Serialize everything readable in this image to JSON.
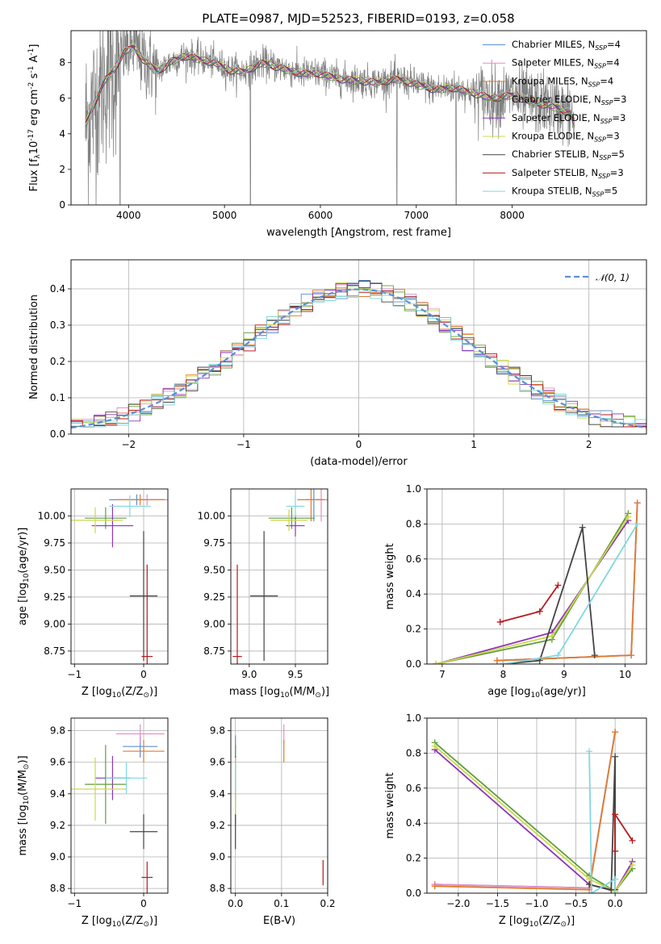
{
  "figure_title": "PLATE=0987, MJD=52523, FIBERID=0193, z=0.058",
  "chart_data": [
    {
      "id": "spectrum",
      "type": "line",
      "xlabel": "wavelength [Angstrom, rest frame]",
      "ylabel": "Flux [f$_\\lambda$10$^{-17}$ erg cm$^{-2}$ s$^{-1}$ A$^{-1}$]",
      "xlim": [
        3400,
        9400
      ],
      "ylim": [
        0,
        9.8
      ],
      "xticks": [
        4000,
        5000,
        6000,
        7000,
        8000
      ],
      "yticks": [
        0,
        2,
        4,
        6,
        8
      ],
      "grid": false,
      "legend_position": "top-right",
      "legend": [
        {
          "label": "Chabrier MILES, N",
          "sub": "SSP",
          "suffix": "=4",
          "color": "#5b8fd6"
        },
        {
          "label": "Salpeter MILES, N",
          "sub": "SSP",
          "suffix": "=4",
          "color": "#e58cc8"
        },
        {
          "label": "Kroupa MILES, N",
          "sub": "SSP",
          "suffix": "=4",
          "color": "#e07b2b"
        },
        {
          "label": "Chabrier ELODIE, N",
          "sub": "SSP",
          "suffix": "=3",
          "color": "#5f9e3a"
        },
        {
          "label": "Salpeter ELODIE, N",
          "sub": "SSP",
          "suffix": "=3",
          "color": "#8d35b7"
        },
        {
          "label": "Kroupa ELODIE, N",
          "sub": "SSP",
          "suffix": "=3",
          "color": "#cbd94b"
        },
        {
          "label": "Chabrier STELIB, N",
          "sub": "SSP",
          "suffix": "=5",
          "color": "#444444"
        },
        {
          "label": "Salpeter STELIB, N",
          "sub": "SSP",
          "suffix": "=3",
          "color": "#b51a1a"
        },
        {
          "label": "Kroupa STELIB, N",
          "sub": "SSP",
          "suffix": "=5",
          "color": "#7fd8e0"
        }
      ],
      "data_color": "#808080",
      "continuum_points": [
        [
          3550,
          4.5
        ],
        [
          3650,
          5.8
        ],
        [
          3750,
          7.0
        ],
        [
          3850,
          7.6
        ],
        [
          3950,
          8.6
        ],
        [
          4050,
          8.9
        ],
        [
          4150,
          8.2
        ],
        [
          4300,
          7.5
        ],
        [
          4450,
          8.1
        ],
        [
          4600,
          8.4
        ],
        [
          4750,
          8.2
        ],
        [
          4900,
          8.0
        ],
        [
          5050,
          7.6
        ],
        [
          5200,
          7.5
        ],
        [
          5400,
          8.0
        ],
        [
          5600,
          7.7
        ],
        [
          5800,
          7.4
        ],
        [
          6000,
          7.4
        ],
        [
          6200,
          7.1
        ],
        [
          6400,
          7.0
        ],
        [
          6600,
          6.9
        ],
        [
          6800,
          7.1
        ],
        [
          7000,
          6.8
        ],
        [
          7200,
          6.5
        ],
        [
          7400,
          6.6
        ],
        [
          7600,
          6.3
        ],
        [
          7800,
          6.0
        ],
        [
          8000,
          6.2
        ],
        [
          8200,
          5.8
        ],
        [
          8400,
          5.6
        ],
        [
          8600,
          5.2
        ],
        [
          8650,
          4.6
        ]
      ]
    },
    {
      "id": "residuals",
      "type": "line",
      "xlabel": "(data-model)/error",
      "ylabel": "Normed distribution",
      "xlim": [
        -2.5,
        2.5
      ],
      "ylim": [
        0,
        0.48
      ],
      "xticks": [
        -2,
        -1,
        0,
        1,
        2
      ],
      "yticks": [
        0.0,
        0.1,
        0.2,
        0.3,
        0.4
      ],
      "grid": true,
      "legend_position": "top-right",
      "legend": [
        {
          "label": "𝒩(0, 1)",
          "color": "#5b8fd6",
          "style": "dashed"
        }
      ],
      "reference_curve": "normal(0,1)"
    },
    {
      "id": "age_vs_Z",
      "type": "scatter",
      "xlabel": "Z [log$_{10}$(Z/Z$_\\odot$)]",
      "ylabel": "age  [log$_{10}$(age/yr)]",
      "xlim": [
        -1.05,
        0.35
      ],
      "ylim": [
        8.63,
        10.25
      ],
      "xticks": [
        -1,
        0
      ],
      "yticks": [
        8.75,
        9.0,
        9.25,
        9.5,
        9.75,
        10.0
      ],
      "grid": true,
      "points": [
        {
          "color": "#5b8fd6",
          "x": -0.1,
          "xerr": 0.4,
          "y": 10.15,
          "yerr": 0.05
        },
        {
          "color": "#e58cc8",
          "x": 0.05,
          "xerr": 0.3,
          "y": 10.15,
          "yerr": 0.05
        },
        {
          "color": "#e07b2b",
          "x": -0.05,
          "xerr": 0.35,
          "y": 10.15,
          "yerr": 0.05
        },
        {
          "color": "#5f9e3a",
          "x": -0.55,
          "xerr": 0.3,
          "y": 9.98,
          "yerr": 0.1
        },
        {
          "color": "#8d35b7",
          "x": -0.45,
          "xerr": 0.3,
          "y": 9.91,
          "yerr": 0.2
        },
        {
          "color": "#cbd94b",
          "x": -0.7,
          "xerr": 0.4,
          "y": 9.96,
          "yerr": 0.12
        },
        {
          "color": "#444444",
          "x": 0.0,
          "xerr": 0.2,
          "y": 9.26,
          "yerr": 0.6
        },
        {
          "color": "#b51a1a",
          "x": 0.05,
          "xerr": 0.08,
          "y": 8.7,
          "yerr": 0.85
        },
        {
          "color": "#7fd8e0",
          "x": -0.2,
          "xerr": 0.3,
          "y": 10.09,
          "yerr": 0.1
        }
      ]
    },
    {
      "id": "age_vs_mass",
      "type": "scatter",
      "xlabel": "mass [log$_{10}$(M/M$_\\odot$)]",
      "ylabel": "",
      "xlim": [
        8.8,
        9.85
      ],
      "ylim": [
        8.63,
        10.25
      ],
      "xticks": [
        9.0,
        9.5
      ],
      "yticks": [
        8.75,
        9.0,
        9.25,
        9.5,
        9.75,
        10.0
      ],
      "grid": true,
      "points": [
        {
          "color": "#5b8fd6",
          "x": 9.7,
          "xerr": 0.1,
          "y": 10.15,
          "yerr": 0.2
        },
        {
          "color": "#e58cc8",
          "x": 9.78,
          "xerr": 0.1,
          "y": 10.15,
          "yerr": 0.2
        },
        {
          "color": "#e07b2b",
          "x": 9.67,
          "xerr": 0.15,
          "y": 10.15,
          "yerr": 0.2
        },
        {
          "color": "#5f9e3a",
          "x": 9.46,
          "xerr": 0.25,
          "y": 9.98,
          "yerr": 0.1
        },
        {
          "color": "#8d35b7",
          "x": 9.5,
          "xerr": 0.1,
          "y": 9.91,
          "yerr": 0.1
        },
        {
          "color": "#cbd94b",
          "x": 9.43,
          "xerr": 0.2,
          "y": 9.96,
          "yerr": 0.1
        },
        {
          "color": "#444444",
          "x": 9.16,
          "xerr": 0.15,
          "y": 9.26,
          "yerr": 0.6
        },
        {
          "color": "#b51a1a",
          "x": 8.87,
          "xerr": 0.05,
          "y": 8.7,
          "yerr": 0.85
        },
        {
          "color": "#7fd8e0",
          "x": 9.5,
          "xerr": 0.1,
          "y": 10.09,
          "yerr": 0.1
        }
      ]
    },
    {
      "id": "massweight_vs_age",
      "type": "line",
      "xlabel": "age  [log$_{10}$(age/yr)]",
      "ylabel": "mass weight",
      "xlim": [
        6.75,
        10.35
      ],
      "ylim": [
        0,
        1.0
      ],
      "xticks": [
        7,
        8,
        9,
        10
      ],
      "yticks": [
        0.0,
        0.2,
        0.4,
        0.6,
        0.8,
        1.0
      ],
      "grid": true,
      "series": [
        {
          "color": "#5b8fd6",
          "x": [
            7.9,
            10.1,
            10.2
          ],
          "y": [
            0.02,
            0.05,
            0.92
          ]
        },
        {
          "color": "#e58cc8",
          "x": [
            7.9,
            10.1,
            10.2
          ],
          "y": [
            0.02,
            0.05,
            0.92
          ]
        },
        {
          "color": "#e07b2b",
          "x": [
            7.9,
            10.1,
            10.2
          ],
          "y": [
            0.02,
            0.05,
            0.92
          ]
        },
        {
          "color": "#5f9e3a",
          "x": [
            6.9,
            8.8,
            10.05
          ],
          "y": [
            0.0,
            0.14,
            0.86
          ]
        },
        {
          "color": "#8d35b7",
          "x": [
            6.9,
            8.8,
            10.05
          ],
          "y": [
            0.0,
            0.18,
            0.82
          ]
        },
        {
          "color": "#cbd94b",
          "x": [
            6.9,
            8.8,
            10.05
          ],
          "y": [
            0.0,
            0.16,
            0.84
          ]
        },
        {
          "color": "#444444",
          "x": [
            8.0,
            8.6,
            9.3,
            9.5
          ],
          "y": [
            0.0,
            0.02,
            0.78,
            0.05
          ]
        },
        {
          "color": "#b51a1a",
          "x": [
            7.95,
            8.6,
            8.9
          ],
          "y": [
            0.24,
            0.3,
            0.45
          ]
        },
        {
          "color": "#7fd8e0",
          "x": [
            8.0,
            8.9,
            10.2
          ],
          "y": [
            0.0,
            0.05,
            0.8
          ]
        }
      ]
    },
    {
      "id": "mass_vs_Z",
      "type": "scatter",
      "xlabel": "Z [log$_{10}$(Z/Z$_\\odot$)]",
      "ylabel": "mass [log$_{10}$(M/M$_\\odot$)]",
      "xlim": [
        -1.05,
        0.35
      ],
      "ylim": [
        8.77,
        9.88
      ],
      "xticks": [
        -1,
        0
      ],
      "yticks": [
        8.8,
        9.0,
        9.2,
        9.4,
        9.6,
        9.8
      ],
      "grid": true,
      "points": [
        {
          "color": "#5b8fd6",
          "x": -0.05,
          "xerr": 0.25,
          "y": 9.7,
          "yerr": 0.07
        },
        {
          "color": "#e58cc8",
          "x": -0.05,
          "xerr": 0.35,
          "y": 9.78,
          "yerr": 0.06
        },
        {
          "color": "#e07b2b",
          "x": 0.0,
          "xerr": 0.3,
          "y": 9.67,
          "yerr": 0.07
        },
        {
          "color": "#5f9e3a",
          "x": -0.55,
          "xerr": 0.3,
          "y": 9.46,
          "yerr": 0.25
        },
        {
          "color": "#8d35b7",
          "x": -0.45,
          "xerr": 0.25,
          "y": 9.5,
          "yerr": 0.14
        },
        {
          "color": "#cbd94b",
          "x": -0.7,
          "xerr": 0.45,
          "y": 9.43,
          "yerr": 0.2
        },
        {
          "color": "#444444",
          "x": 0.0,
          "xerr": 0.2,
          "y": 9.16,
          "yerr": 0.11
        },
        {
          "color": "#b51a1a",
          "x": 0.05,
          "xerr": 0.08,
          "y": 8.87,
          "yerr": 0.1
        },
        {
          "color": "#7fd8e0",
          "x": -0.25,
          "xerr": 0.3,
          "y": 9.5,
          "yerr": 0.1
        }
      ]
    },
    {
      "id": "mass_vs_ebv",
      "type": "scatter",
      "xlabel": "E(B-V)",
      "ylabel": "",
      "xlim": [
        -0.01,
        0.2
      ],
      "ylim": [
        8.77,
        9.88
      ],
      "xticks": [
        0.0,
        0.1,
        0.2
      ],
      "yticks": [
        8.8,
        9.0,
        9.2,
        9.4,
        9.6,
        9.8
      ],
      "grid": true,
      "points": [
        {
          "color": "#5b8fd6",
          "x": 0.0,
          "xerr": 0.0,
          "y": 9.7,
          "yerr": 0.07
        },
        {
          "color": "#e58cc8",
          "x": 0.105,
          "xerr": 0.0,
          "y": 9.78,
          "yerr": 0.06
        },
        {
          "color": "#e07b2b",
          "x": 0.105,
          "xerr": 0.0,
          "y": 9.67,
          "yerr": 0.07
        },
        {
          "color": "#5f9e3a",
          "x": 0.0,
          "xerr": 0.0,
          "y": 9.46,
          "yerr": 0.25
        },
        {
          "color": "#8d35b7",
          "x": 0.0,
          "xerr": 0.0,
          "y": 9.5,
          "yerr": 0.14
        },
        {
          "color": "#cbd94b",
          "x": 0.0,
          "xerr": 0.0,
          "y": 9.43,
          "yerr": 0.2
        },
        {
          "color": "#444444",
          "x": 0.0,
          "xerr": 0.0,
          "y": 9.16,
          "yerr": 0.11
        },
        {
          "color": "#b51a1a",
          "x": 0.19,
          "xerr": 0.0,
          "y": 8.9,
          "yerr": 0.08
        },
        {
          "color": "#7fd8e0",
          "x": 0.0,
          "xerr": 0.0,
          "y": 9.5,
          "yerr": 0.1
        }
      ]
    },
    {
      "id": "massweight_vs_Z",
      "type": "line",
      "xlabel": "Z [log$_{10}$(Z/Z$_\\odot$)]",
      "ylabel": "mass weight",
      "xlim": [
        -2.4,
        0.4
      ],
      "ylim": [
        0,
        1.0
      ],
      "xticks": [
        -2.0,
        -1.5,
        -1.0,
        -0.5,
        0.0
      ],
      "yticks": [
        0.0,
        0.2,
        0.4,
        0.6,
        0.8,
        1.0
      ],
      "grid": true,
      "series": [
        {
          "color": "#5b8fd6",
          "x": [
            -2.3,
            -0.33,
            0.0
          ],
          "y": [
            0.05,
            0.03,
            0.92
          ]
        },
        {
          "color": "#e58cc8",
          "x": [
            -2.3,
            -0.33,
            0.0
          ],
          "y": [
            0.05,
            0.03,
            0.92
          ]
        },
        {
          "color": "#e07b2b",
          "x": [
            -2.3,
            -0.33,
            0.0
          ],
          "y": [
            0.04,
            0.02,
            0.92
          ]
        },
        {
          "color": "#5f9e3a",
          "x": [
            -2.3,
            -0.33,
            0.0,
            0.22
          ],
          "y": [
            0.86,
            0.1,
            0.01,
            0.14
          ]
        },
        {
          "color": "#8d35b7",
          "x": [
            -2.3,
            -0.33,
            0.0,
            0.22
          ],
          "y": [
            0.82,
            0.05,
            0.01,
            0.18
          ]
        },
        {
          "color": "#cbd94b",
          "x": [
            -2.3,
            -0.33,
            0.0,
            0.22
          ],
          "y": [
            0.84,
            0.08,
            0.01,
            0.16
          ]
        },
        {
          "color": "#444444",
          "x": [
            -0.33,
            -0.05,
            0.0,
            0.0
          ],
          "y": [
            0.05,
            0.02,
            0.78,
            0.02
          ]
        },
        {
          "color": "#b51a1a",
          "x": [
            0.0,
            0.0,
            0.22
          ],
          "y": [
            0.24,
            0.45,
            0.3
          ]
        },
        {
          "color": "#7fd8e0",
          "x": [
            -0.33,
            -0.3,
            0.0,
            0.0
          ],
          "y": [
            0.81,
            0.0,
            0.08,
            0.0
          ]
        }
      ]
    }
  ]
}
